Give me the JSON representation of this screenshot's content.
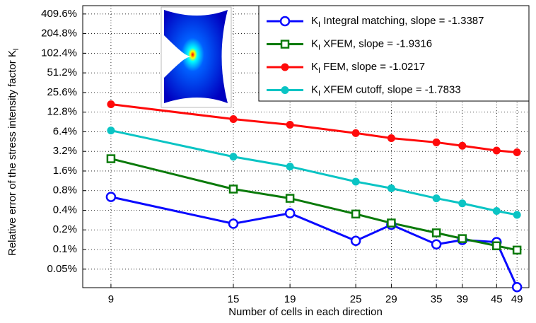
{
  "chart_data": {
    "type": "line",
    "xlabel": "Number of cells in each direction",
    "ylabel": "Relative error of the stress intensity factor KI",
    "x": [
      9,
      15,
      19,
      25,
      29,
      35,
      39,
      45,
      49
    ],
    "xscale": "log",
    "yscale": "log",
    "grid": true,
    "legend": "upper right",
    "xlim": [
      8,
      51.5
    ],
    "xticks": [
      9,
      15,
      19,
      25,
      29,
      35,
      39,
      45,
      49
    ],
    "ylim": [
      0.026,
      550
    ],
    "yticks": [
      {
        "value": 409.6,
        "label": "409.6%"
      },
      {
        "value": 204.8,
        "label": "204.8%"
      },
      {
        "value": 102.4,
        "label": "102.4%"
      },
      {
        "value": 51.2,
        "label": "51.2%"
      },
      {
        "value": 25.6,
        "label": "25.6%"
      },
      {
        "value": 12.8,
        "label": "12.8%"
      },
      {
        "value": 6.4,
        "label": "6.4%"
      },
      {
        "value": 3.2,
        "label": "3.2%"
      },
      {
        "value": 1.6,
        "label": "1.6%"
      },
      {
        "value": 0.8,
        "label": "0.8%"
      },
      {
        "value": 0.4,
        "label": "0.4%"
      },
      {
        "value": 0.2,
        "label": "0.2%"
      },
      {
        "value": 0.1,
        "label": "0.1%"
      },
      {
        "value": 0.05,
        "label": "0.05%"
      }
    ],
    "series": [
      {
        "name": "KI Integral matching, slope = -1.3387",
        "color": "#0a0aff",
        "marker": "circle-open",
        "values": [
          0.641,
          0.249,
          0.36,
          0.136,
          0.24,
          0.12,
          0.14,
          0.13,
          0.0265
        ]
      },
      {
        "name": "KI XFEM, slope = -1.9316",
        "color": "#0a7a0a",
        "marker": "square-open",
        "values": [
          2.47,
          0.846,
          0.61,
          0.35,
          0.255,
          0.18,
          0.147,
          0.114,
          0.098
        ]
      },
      {
        "name": "KI FEM, slope = -1.0217",
        "color": "#ff0a0a",
        "marker": "circle-filled",
        "values": [
          16.9,
          10.0,
          8.2,
          6.1,
          5.1,
          4.4,
          3.9,
          3.3,
          3.1
        ]
      },
      {
        "name": "KI XFEM cutoff, slope = -1.7833",
        "color": "#0ac4c4",
        "marker": "circle-filled",
        "values": [
          6.7,
          2.65,
          1.87,
          1.1,
          0.87,
          0.61,
          0.51,
          0.39,
          0.34
        ]
      }
    ]
  }
}
